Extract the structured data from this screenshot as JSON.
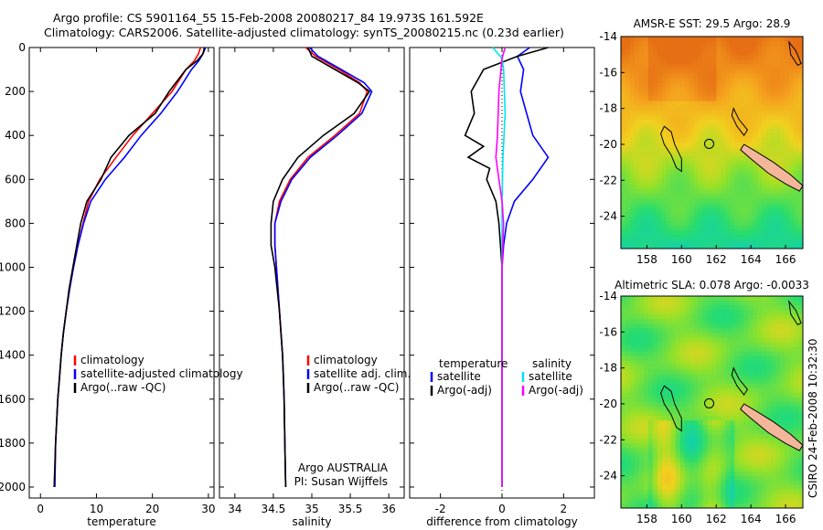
{
  "title": {
    "line1": "Argo profile: CS 5901164_55 15-Feb-2008 20080217_84 19.973S 161.592E",
    "line2": "Climatology: CARS2006. Satellite-adjusted climatology: synTS_20080215.nc (0.23d earlier)"
  },
  "side_label": "CSIRO 24-Feb-2008 10:32:30",
  "colors": {
    "climatology": "#ff0000",
    "satellite": "#0000ff",
    "argo": "#000000",
    "sat_diff": "#00e5ee",
    "argo_sal": "#ff00ff",
    "land": "#f4b69a"
  },
  "chart_data": [
    {
      "type": "line",
      "id": "temperature",
      "xlabel": "temperature",
      "ylabel": "",
      "xlim": [
        -2,
        31
      ],
      "ylim": [
        2050,
        0
      ],
      "xticks": [
        0,
        10,
        20,
        30
      ],
      "yticks": [
        0,
        200,
        400,
        600,
        800,
        1000,
        1200,
        1400,
        1600,
        1800,
        2000
      ],
      "legend": [
        "climatology",
        "satellite-adjusted climatology",
        "Argo(..raw -QC)"
      ],
      "series": [
        {
          "name": "climatology",
          "color": "#ff0000",
          "x": [
            28.6,
            28.2,
            27.5,
            26.0,
            23.5,
            20.0,
            16.5,
            13.5,
            10.6,
            8.6,
            7.6,
            6.7,
            5.9,
            5.2,
            4.6,
            4.1,
            3.7,
            3.4,
            3.1,
            2.9,
            2.7,
            2.55
          ],
          "y": [
            0,
            30,
            60,
            100,
            200,
            300,
            400,
            500,
            600,
            700,
            800,
            900,
            1000,
            1100,
            1200,
            1300,
            1400,
            1500,
            1600,
            1700,
            1800,
            2000
          ]
        },
        {
          "name": "satellite-adjusted climatology",
          "color": "#0000ff",
          "x": [
            29.5,
            29.0,
            28.3,
            27.0,
            24.5,
            21.5,
            18.0,
            15.0,
            11.6,
            9.0,
            7.7,
            6.7,
            5.9,
            5.2,
            4.6,
            4.1,
            3.7,
            3.4,
            3.1,
            2.9,
            2.7,
            2.55
          ],
          "y": [
            0,
            30,
            60,
            100,
            200,
            300,
            400,
            500,
            600,
            700,
            800,
            900,
            1000,
            1100,
            1200,
            1300,
            1400,
            1500,
            1600,
            1700,
            1800,
            2000
          ]
        },
        {
          "name": "Argo(..raw -QC)",
          "color": "#000000",
          "x": [
            29.3,
            29.0,
            28.0,
            26.0,
            23.0,
            20.5,
            15.8,
            12.6,
            10.8,
            8.3,
            7.2,
            6.5,
            5.8,
            5.1,
            4.6,
            4.1,
            3.7,
            3.4,
            3.1,
            2.9,
            2.7,
            2.45
          ],
          "y": [
            0,
            30,
            60,
            100,
            200,
            300,
            400,
            500,
            600,
            700,
            800,
            900,
            1000,
            1100,
            1200,
            1300,
            1400,
            1500,
            1600,
            1700,
            1800,
            2000
          ]
        }
      ]
    },
    {
      "type": "line",
      "id": "salinity",
      "xlabel": "salinity",
      "xlim": [
        33.8,
        36.2
      ],
      "ylim": [
        2050,
        0
      ],
      "xticks": [
        34,
        34.5,
        35,
        35.5,
        36
      ],
      "legend": [
        "climatology",
        "satellite adj. clim.",
        "Argo(..raw -QC)"
      ],
      "annotations": [
        "Argo AUSTRALIA",
        "PI: Susan Wijffels"
      ],
      "series": [
        {
          "name": "climatology",
          "color": "#ff0000",
          "x": [
            34.92,
            35.05,
            35.35,
            35.62,
            35.72,
            35.62,
            35.3,
            34.95,
            34.72,
            34.58,
            34.52,
            34.52,
            34.54,
            34.56,
            34.58,
            34.6,
            34.62,
            34.63,
            34.64,
            34.65,
            34.66
          ],
          "y": [
            0,
            40,
            100,
            160,
            200,
            300,
            400,
            500,
            600,
            700,
            800,
            900,
            1000,
            1100,
            1200,
            1300,
            1400,
            1500,
            1600,
            1800,
            2000
          ]
        },
        {
          "name": "satellite adj. clim.",
          "color": "#0000ff",
          "x": [
            34.97,
            35.08,
            35.38,
            35.68,
            35.78,
            35.65,
            35.33,
            34.98,
            34.74,
            34.6,
            34.52,
            34.52,
            34.54,
            34.56,
            34.58,
            34.6,
            34.62,
            34.63,
            34.64,
            34.65,
            34.66
          ],
          "y": [
            0,
            40,
            100,
            160,
            200,
            300,
            400,
            500,
            600,
            700,
            800,
            900,
            1000,
            1100,
            1200,
            1300,
            1400,
            1500,
            1600,
            1800,
            2000
          ]
        },
        {
          "name": "Argo(..raw -QC)",
          "color": "#000000",
          "x": [
            34.95,
            35.0,
            35.3,
            35.6,
            35.75,
            35.55,
            35.15,
            34.82,
            34.62,
            34.5,
            34.47,
            34.47,
            34.52,
            34.55,
            34.58,
            34.6,
            34.62,
            34.63,
            34.64,
            34.65,
            34.66
          ],
          "y": [
            0,
            40,
            100,
            160,
            200,
            300,
            400,
            500,
            600,
            700,
            800,
            900,
            1000,
            1100,
            1200,
            1300,
            1400,
            1500,
            1600,
            1800,
            2000
          ]
        }
      ]
    },
    {
      "type": "line",
      "id": "difference",
      "xlabel": "difference from climatology",
      "xlim": [
        -3,
        3
      ],
      "ylim": [
        2050,
        0
      ],
      "xticks": [
        -2,
        0,
        2
      ],
      "legend_headers": [
        "temperature",
        "salinity"
      ],
      "legend": [
        "satellite",
        "Argo(-adj)",
        "satellite",
        "Argo(-adj)"
      ],
      "series": [
        {
          "name": "satellite",
          "group": "temperature",
          "color": "#0000ff",
          "x": [
            0.9,
            0.5,
            0.7,
            0.6,
            0.8,
            1.0,
            1.5,
            1.0,
            0.4,
            0.15,
            0.05,
            0.0,
            0.0,
            0.0,
            0.0,
            0.0
          ],
          "y": [
            0,
            40,
            100,
            200,
            300,
            400,
            500,
            600,
            700,
            800,
            900,
            1000,
            1200,
            1400,
            1600,
            2000
          ]
        },
        {
          "name": "Argo(-adj)",
          "group": "temperature",
          "color": "#000000",
          "x": [
            1.5,
            0.5,
            -0.6,
            -1.0,
            -0.9,
            -1.2,
            -0.6,
            -1.1,
            -0.4,
            -0.5,
            -0.2,
            -0.1,
            0.0,
            0.0,
            0.0,
            0.0
          ],
          "y": [
            0,
            40,
            100,
            200,
            300,
            400,
            450,
            500,
            550,
            600,
            700,
            800,
            1000,
            1400,
            1600,
            2000
          ]
        },
        {
          "name": "satellite",
          "group": "salinity",
          "color": "#00e5ee",
          "x": [
            -0.3,
            0.0,
            0.05,
            0.1,
            0.03,
            0.0,
            0.0,
            0.0,
            0.0,
            0.0
          ],
          "y": [
            0,
            50,
            100,
            300,
            500,
            700,
            1000,
            1400,
            1600,
            2000
          ]
        },
        {
          "name": "Argo(-adj)",
          "group": "salinity",
          "color": "#ff00ff",
          "x": [
            0.1,
            0.0,
            -0.1,
            -0.15,
            -0.2,
            -0.1,
            0.0,
            0.05,
            0.0,
            0.0
          ],
          "y": [
            0,
            50,
            200,
            400,
            500,
            600,
            700,
            800,
            1000,
            2000
          ]
        }
      ]
    },
    {
      "type": "heatmap",
      "id": "sst-map",
      "title": "AMSR-E SST: 29.5 Argo: 28.9",
      "xlim": [
        156.5,
        167
      ],
      "ylim": [
        -25.8,
        -14
      ],
      "xticks": [
        158,
        160,
        162,
        164,
        166
      ],
      "yticks": [
        -14,
        -16,
        -18,
        -20,
        -22,
        -24
      ],
      "marker": {
        "lon": 161.592,
        "lat": -19.973
      }
    },
    {
      "type": "heatmap",
      "id": "sla-map",
      "title": "Altimetric SLA: 0.078 Argo: -0.0033",
      "xlim": [
        156.5,
        167
      ],
      "ylim": [
        -25.8,
        -14
      ],
      "xticks": [
        158,
        160,
        162,
        164,
        166
      ],
      "yticks": [
        -14,
        -16,
        -18,
        -20,
        -22,
        -24
      ],
      "marker": {
        "lon": 161.592,
        "lat": -19.973
      }
    }
  ]
}
